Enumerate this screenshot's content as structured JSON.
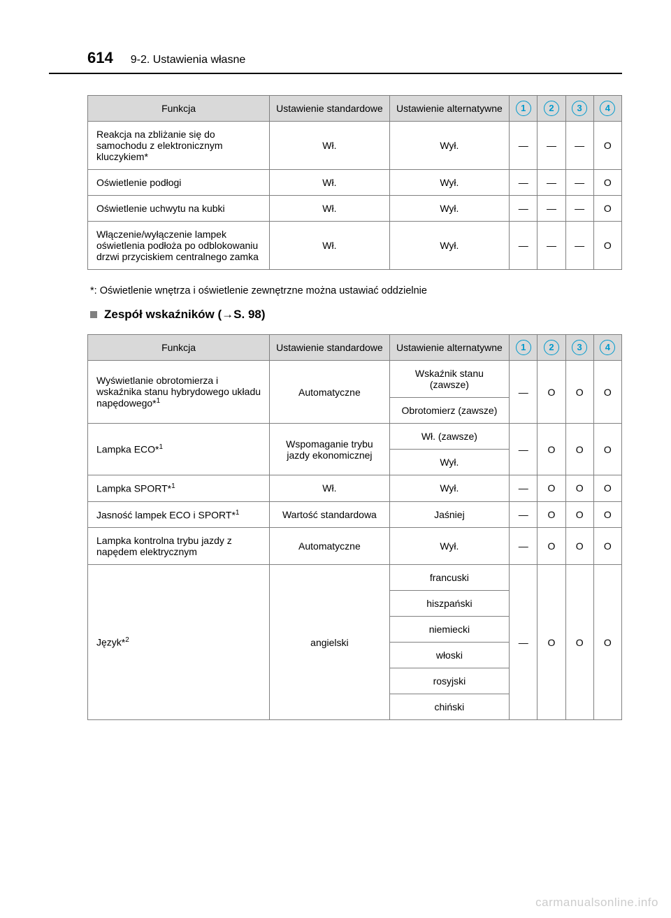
{
  "page_number": "614",
  "section_title": "9-2. Ustawienia własne",
  "headers": {
    "func": "Funkcja",
    "std": "Ustawienie standardowe",
    "alt": "Ustawienie alternatywne"
  },
  "icon_numbers": [
    "1",
    "2",
    "3",
    "4"
  ],
  "table1": [
    {
      "func": "Reakcja na zbliżanie się do samochodu z elektronicznym kluczykiem*",
      "std": "Wł.",
      "alt": "Wył.",
      "c": [
        "—",
        "—",
        "—",
        "O"
      ]
    },
    {
      "func": "Oświetlenie podłogi",
      "std": "Wł.",
      "alt": "Wył.",
      "c": [
        "—",
        "—",
        "—",
        "O"
      ]
    },
    {
      "func": "Oświetlenie uchwytu na kubki",
      "std": "Wł.",
      "alt": "Wył.",
      "c": [
        "—",
        "—",
        "—",
        "O"
      ]
    },
    {
      "func": "Włączenie/wyłączenie lampek oświetlenia podłoża po odblokowaniu drzwi przyciskiem centralnego zamka",
      "std": "Wł.",
      "alt": "Wył.",
      "c": [
        "—",
        "—",
        "—",
        "O"
      ]
    }
  ],
  "footnote": "*: Oświetlenie wnętrza i oświetlenie zewnętrzne można ustawiać oddzielnie",
  "subheading_prefix": "Zespół wskaźników (",
  "subheading_ref": "S. 98)",
  "table2": {
    "r1": {
      "func": "Wyświetlanie obrotomierza i wskaźnika stanu hybrydowego układu napędowego*",
      "sup": "1",
      "std": "Automatyczne",
      "alt1": "Wskaźnik stanu (zawsze)",
      "alt2": "Obrotomierz (zawsze)",
      "c": [
        "—",
        "O",
        "O",
        "O"
      ]
    },
    "r2": {
      "func": "Lampka ECO*",
      "sup": "1",
      "std": "Wspomaganie trybu jazdy ekonomicznej",
      "alt1": "Wł. (zawsze)",
      "alt2": "Wył.",
      "c": [
        "—",
        "O",
        "O",
        "O"
      ]
    },
    "r3": {
      "func": "Lampka SPORT*",
      "sup": "1",
      "std": "Wł.",
      "alt": "Wył.",
      "c": [
        "—",
        "O",
        "O",
        "O"
      ]
    },
    "r4": {
      "func": "Jasność lampek ECO i SPORT*",
      "sup": "1",
      "std": "Wartość standardowa",
      "alt": "Jaśniej",
      "c": [
        "—",
        "O",
        "O",
        "O"
      ]
    },
    "r5": {
      "func": "Lampka kontrolna trybu jazdy z napędem elektrycznym",
      "std": "Automatyczne",
      "alt": "Wył.",
      "c": [
        "—",
        "O",
        "O",
        "O"
      ]
    },
    "r6": {
      "func": "Język*",
      "sup": "2",
      "std": "angielski",
      "alts": [
        "francuski",
        "hiszpański",
        "niemiecki",
        "włoski",
        "rosyjski",
        "chiński"
      ],
      "c": [
        "—",
        "O",
        "O",
        "O"
      ]
    }
  },
  "watermark": "carmanualsonline.info"
}
